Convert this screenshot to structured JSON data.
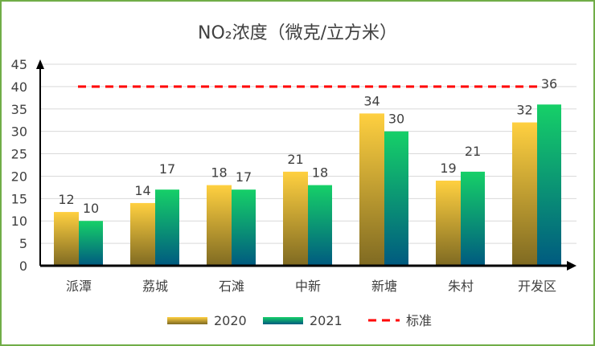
{
  "chart_data": {
    "type": "bar",
    "title": "NO₂浓度（微克/立方米）",
    "categories": [
      "派潭",
      "荔城",
      "石滩",
      "中新",
      "新塘",
      "朱村",
      "开发区"
    ],
    "series": [
      {
        "name": "2020",
        "values": [
          12,
          14,
          18,
          21,
          34,
          19,
          32
        ],
        "colors": [
          "#ffd040",
          "#7f6a22"
        ]
      },
      {
        "name": "2021",
        "values": [
          10,
          17,
          17,
          18,
          30,
          21,
          36
        ],
        "colors": [
          "#16d068",
          "#005a80"
        ]
      }
    ],
    "reference_line": {
      "name": "标准",
      "value": 40,
      "color": "#ff0000",
      "style": "dashed"
    },
    "ylim": [
      0,
      45
    ],
    "yticks": [
      0,
      5,
      10,
      15,
      20,
      25,
      30,
      35,
      40,
      45
    ],
    "grid": true,
    "legend": "bottom",
    "border_color": "#70ad47"
  }
}
